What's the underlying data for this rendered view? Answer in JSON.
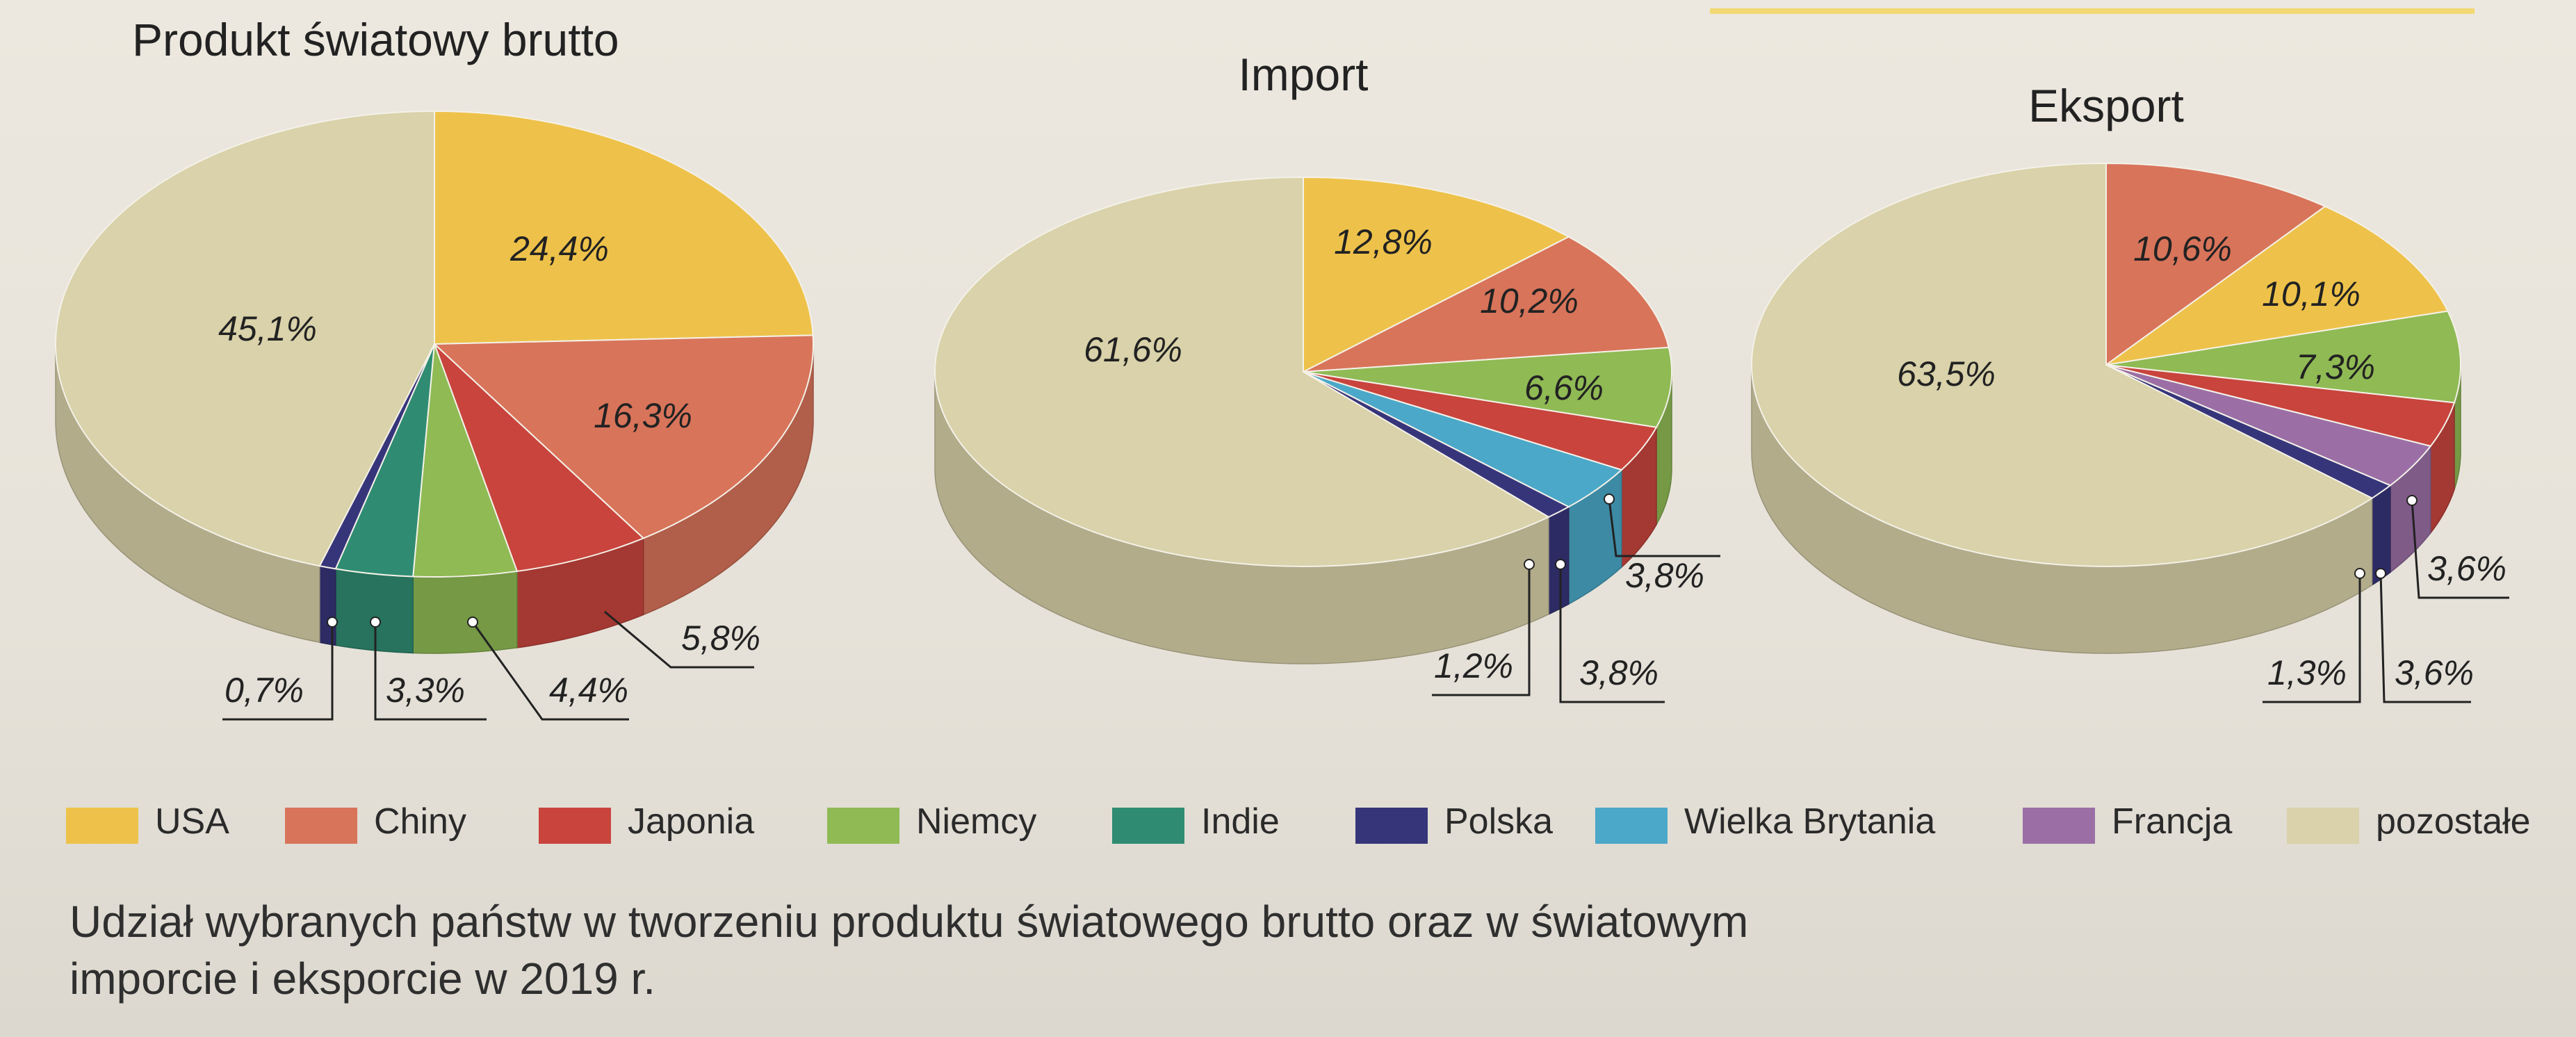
{
  "chart_data": [
    {
      "type": "pie",
      "title": "Produkt światowy brutto",
      "slices": [
        {
          "category": "USA",
          "value": 24.4,
          "label": "24,4%"
        },
        {
          "category": "Chiny",
          "value": 16.3,
          "label": "16,3%"
        },
        {
          "category": "Japonia",
          "value": 5.8,
          "label": "5,8%"
        },
        {
          "category": "Niemcy",
          "value": 4.4,
          "label": "4,4%"
        },
        {
          "category": "Indie",
          "value": 3.3,
          "label": "3,3%"
        },
        {
          "category": "Polska",
          "value": 0.7,
          "label": "0,7%"
        },
        {
          "category": "pozostałe",
          "value": 45.1,
          "label": "45,1%"
        }
      ]
    },
    {
      "type": "pie",
      "title": "Import",
      "slices": [
        {
          "category": "USA",
          "value": 12.8,
          "label": "12,8%"
        },
        {
          "category": "Chiny",
          "value": 10.2,
          "label": "10,2%"
        },
        {
          "category": "Niemcy",
          "value": 6.6,
          "label": "6,6%"
        },
        {
          "category": "Japonia",
          "value": 3.8,
          "label": "3,8%"
        },
        {
          "category": "Wielka Brytania",
          "value": 3.8,
          "label": "3,8%"
        },
        {
          "category": "Polska",
          "value": 1.2,
          "label": "1,2%"
        },
        {
          "category": "pozostałe",
          "value": 61.6,
          "label": "61,6%"
        }
      ]
    },
    {
      "type": "pie",
      "title": "Eksport",
      "slices": [
        {
          "category": "Chiny",
          "value": 10.6,
          "label": "10,6%"
        },
        {
          "category": "USA",
          "value": 10.1,
          "label": "10,1%"
        },
        {
          "category": "Niemcy",
          "value": 7.3,
          "label": "7,3%"
        },
        {
          "category": "Japonia",
          "value": 3.6,
          "label": "3,6%"
        },
        {
          "category": "Francja",
          "value": 3.6,
          "label": "3,6%"
        },
        {
          "category": "Polska",
          "value": 1.3,
          "label": "1,3%"
        },
        {
          "category": "pozostałe",
          "value": 63.5,
          "label": "63,5%"
        }
      ]
    }
  ],
  "legend": [
    {
      "key": "USA",
      "label": "USA",
      "color": "#eec24a"
    },
    {
      "key": "Chiny",
      "label": "Chiny",
      "color": "#d8745a"
    },
    {
      "key": "Japonia",
      "label": "Japonia",
      "color": "#c8443d"
    },
    {
      "key": "Niemcy",
      "label": "Niemcy",
      "color": "#8fba54"
    },
    {
      "key": "Indie",
      "label": "Indie",
      "color": "#2f8c72"
    },
    {
      "key": "Polska",
      "label": "Polska",
      "color": "#37357a"
    },
    {
      "key": "Wielka Brytania",
      "label": "Wielka Brytania",
      "color": "#4ba8c8"
    },
    {
      "key": "Francja",
      "label": "Francja",
      "color": "#9b6fa6"
    },
    {
      "key": "pozostałe",
      "label": "pozostałe",
      "color": "#d9d2aa"
    }
  ],
  "caption": {
    "line1": "Udział wybranych państw w tworzeniu produktu światowego brutto oraz w światowym",
    "line2": "imporcie i eksporcie w 2019 r."
  }
}
